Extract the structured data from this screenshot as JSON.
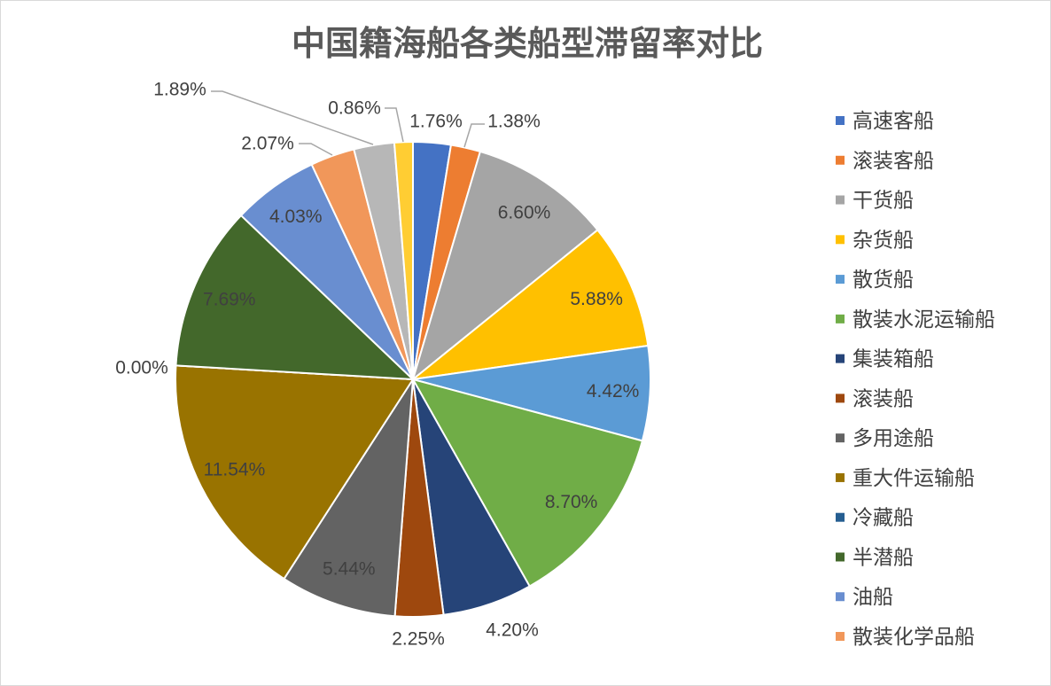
{
  "chart_data": {
    "type": "pie",
    "title": "中国籍海船各类船型滞留率对比",
    "categories": [
      "高速客船",
      "滚装客船",
      "干货船",
      "杂货船",
      "散货船",
      "散装水泥运输船",
      "集装箱船",
      "滚装船",
      "多用途船",
      "重大件运输船",
      "冷藏船",
      "半潜船",
      "油船",
      "散装化学品船",
      "",
      ""
    ],
    "values": [
      1.76,
      1.38,
      6.6,
      5.88,
      4.42,
      8.7,
      4.2,
      2.25,
      5.44,
      11.54,
      0.0,
      7.69,
      4.03,
      2.07,
      1.89,
      0.86
    ],
    "data_labels": [
      "1.76%",
      "1.38%",
      "6.60%",
      "5.88%",
      "4.42%",
      "8.70%",
      "4.20%",
      "2.25%",
      "5.44%",
      "11.54%",
      "0.00%",
      "7.69%",
      "4.03%",
      "2.07%",
      "1.89%",
      "0.86%"
    ],
    "colors": [
      "#4472C4",
      "#ED7D31",
      "#A5A5A5",
      "#FFC000",
      "#5B9BD5",
      "#70AD47",
      "#264478",
      "#9E480E",
      "#636363",
      "#997300",
      "#255E91",
      "#43682B",
      "#698ED0",
      "#F1975A",
      "#B7B7B7",
      "#FFCD33"
    ],
    "legend": {
      "position": "right"
    }
  }
}
